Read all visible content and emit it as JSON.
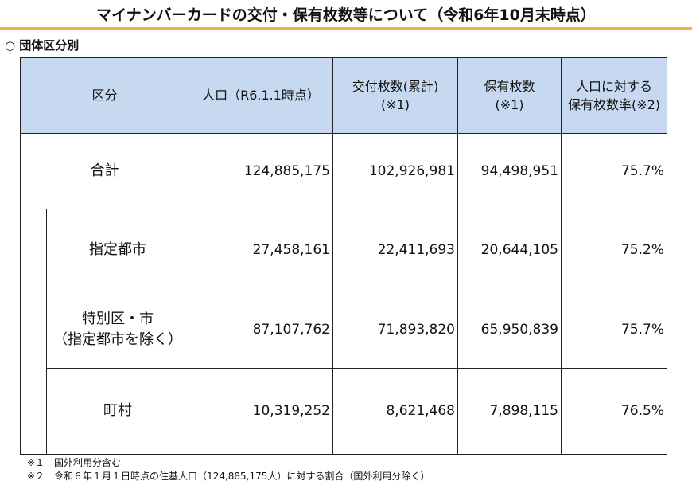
{
  "header": {
    "title": "マイナンバーカードの交付・保有枚数等について（令和6年10月末時点）",
    "section": "○ 団体区分別"
  },
  "table": {
    "columns": [
      "区分",
      "人口（R6.1.1時点）",
      "交付枚数(累計)\n(※1)",
      "保有枚数\n(※1)",
      "人口に対する\n保有枚数率(※2)"
    ],
    "rows": [
      [
        "合計",
        "124,885,175",
        "102,926,981",
        "94,498,951",
        "75.7%"
      ],
      [
        "指定都市",
        "27,458,161",
        "22,411,693",
        "20,644,105",
        "75.2%"
      ],
      [
        "特別区・市\n（指定都市を除く）",
        "87,107,762",
        "71,893,820",
        "65,950,839",
        "75.7%"
      ],
      [
        "町村",
        "10,319,252",
        "8,621,468",
        "7,898,115",
        "76.5%"
      ]
    ]
  },
  "notes": [
    "※１　国外利用分含む",
    "※２　令和６年１月１日時点の住基人口（124,885,175人）に対する割合（国外利用分除く）"
  ]
}
